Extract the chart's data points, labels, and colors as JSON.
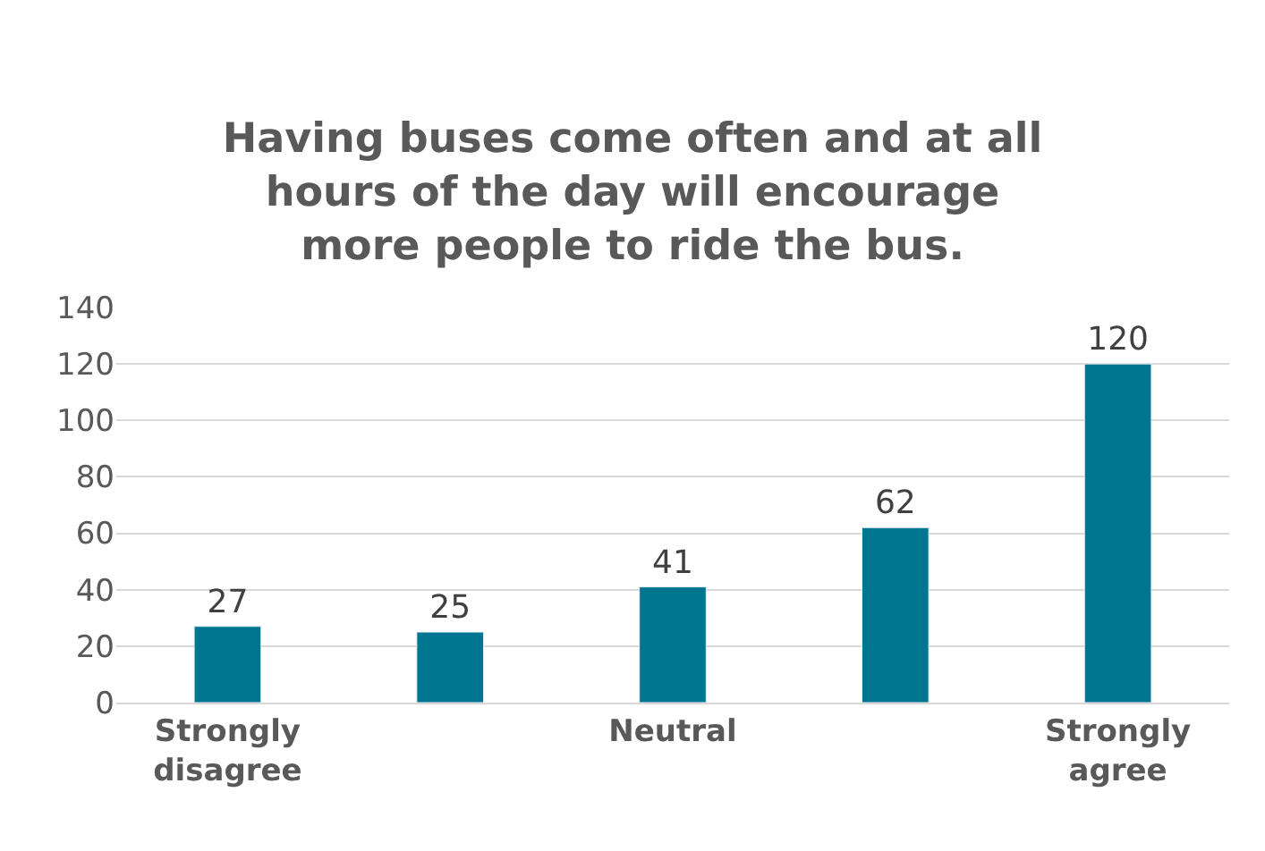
{
  "chart_data": {
    "type": "bar",
    "title": "Having buses come often and at all hours of the day will encourage more people to ride the bus.",
    "categories": [
      "Strongly disagree",
      null,
      "Neutral",
      null,
      "Strongly agree"
    ],
    "values": [
      27,
      25,
      41,
      62,
      120
    ],
    "color": "#00758f",
    "ylim": [
      0,
      140
    ],
    "yticks": [
      0,
      20,
      40,
      60,
      80,
      100,
      120,
      140
    ],
    "grid": "y",
    "data_labels": true
  }
}
